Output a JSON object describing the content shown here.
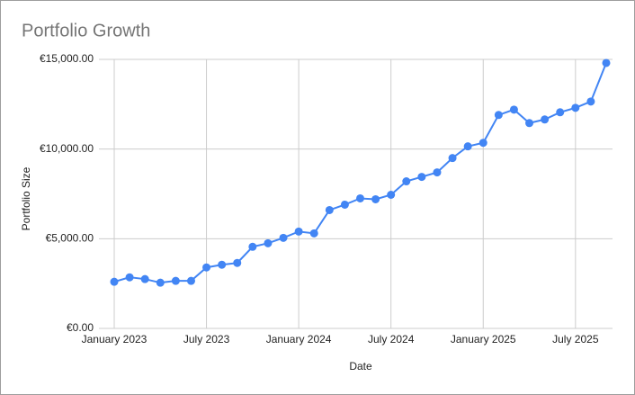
{
  "chart_data": {
    "type": "line",
    "title": "Portfolio Growth",
    "x_label": "Date",
    "y_label": "Portfolio Size",
    "x": [
      "2023-01",
      "2023-02",
      "2023-03",
      "2023-04",
      "2023-05",
      "2023-06",
      "2023-07",
      "2023-08",
      "2023-09",
      "2023-10",
      "2023-11",
      "2023-12",
      "2024-01",
      "2024-02",
      "2024-03",
      "2024-04",
      "2024-05",
      "2024-06",
      "2024-07",
      "2024-08",
      "2024-09",
      "2024-10",
      "2024-11",
      "2024-12",
      "2025-01",
      "2025-02",
      "2025-03",
      "2025-04",
      "2025-05",
      "2025-06",
      "2025-07",
      "2025-08",
      "2025-09"
    ],
    "series": [
      {
        "name": "Portfolio Size",
        "color": "#4285f4",
        "values": [
          2600,
          2850,
          2750,
          2550,
          2650,
          2650,
          3400,
          3550,
          3650,
          4550,
          4750,
          5050,
          5400,
          5300,
          6600,
          6900,
          7250,
          7200,
          7450,
          8200,
          8450,
          8700,
          9500,
          10150,
          10350,
          11900,
          12200,
          11450,
          11650,
          12050,
          12300,
          12650,
          14800
        ]
      }
    ],
    "xticks": [
      {
        "value": "2023-01",
        "label": "January 2023"
      },
      {
        "value": "2023-07",
        "label": "July 2023"
      },
      {
        "value": "2024-01",
        "label": "January 2024"
      },
      {
        "value": "2024-07",
        "label": "July 2024"
      },
      {
        "value": "2025-01",
        "label": "January 2025"
      },
      {
        "value": "2025-07",
        "label": "July 2025"
      }
    ],
    "ylim": [
      0,
      15000
    ],
    "yticks": [
      {
        "value": 0,
        "label": "€0.00"
      },
      {
        "value": 5000,
        "label": "€5,000.00"
      },
      {
        "value": 10000,
        "label": "€10,000.00"
      },
      {
        "value": 15000,
        "label": "€15,000.00"
      }
    ],
    "grid": true
  }
}
